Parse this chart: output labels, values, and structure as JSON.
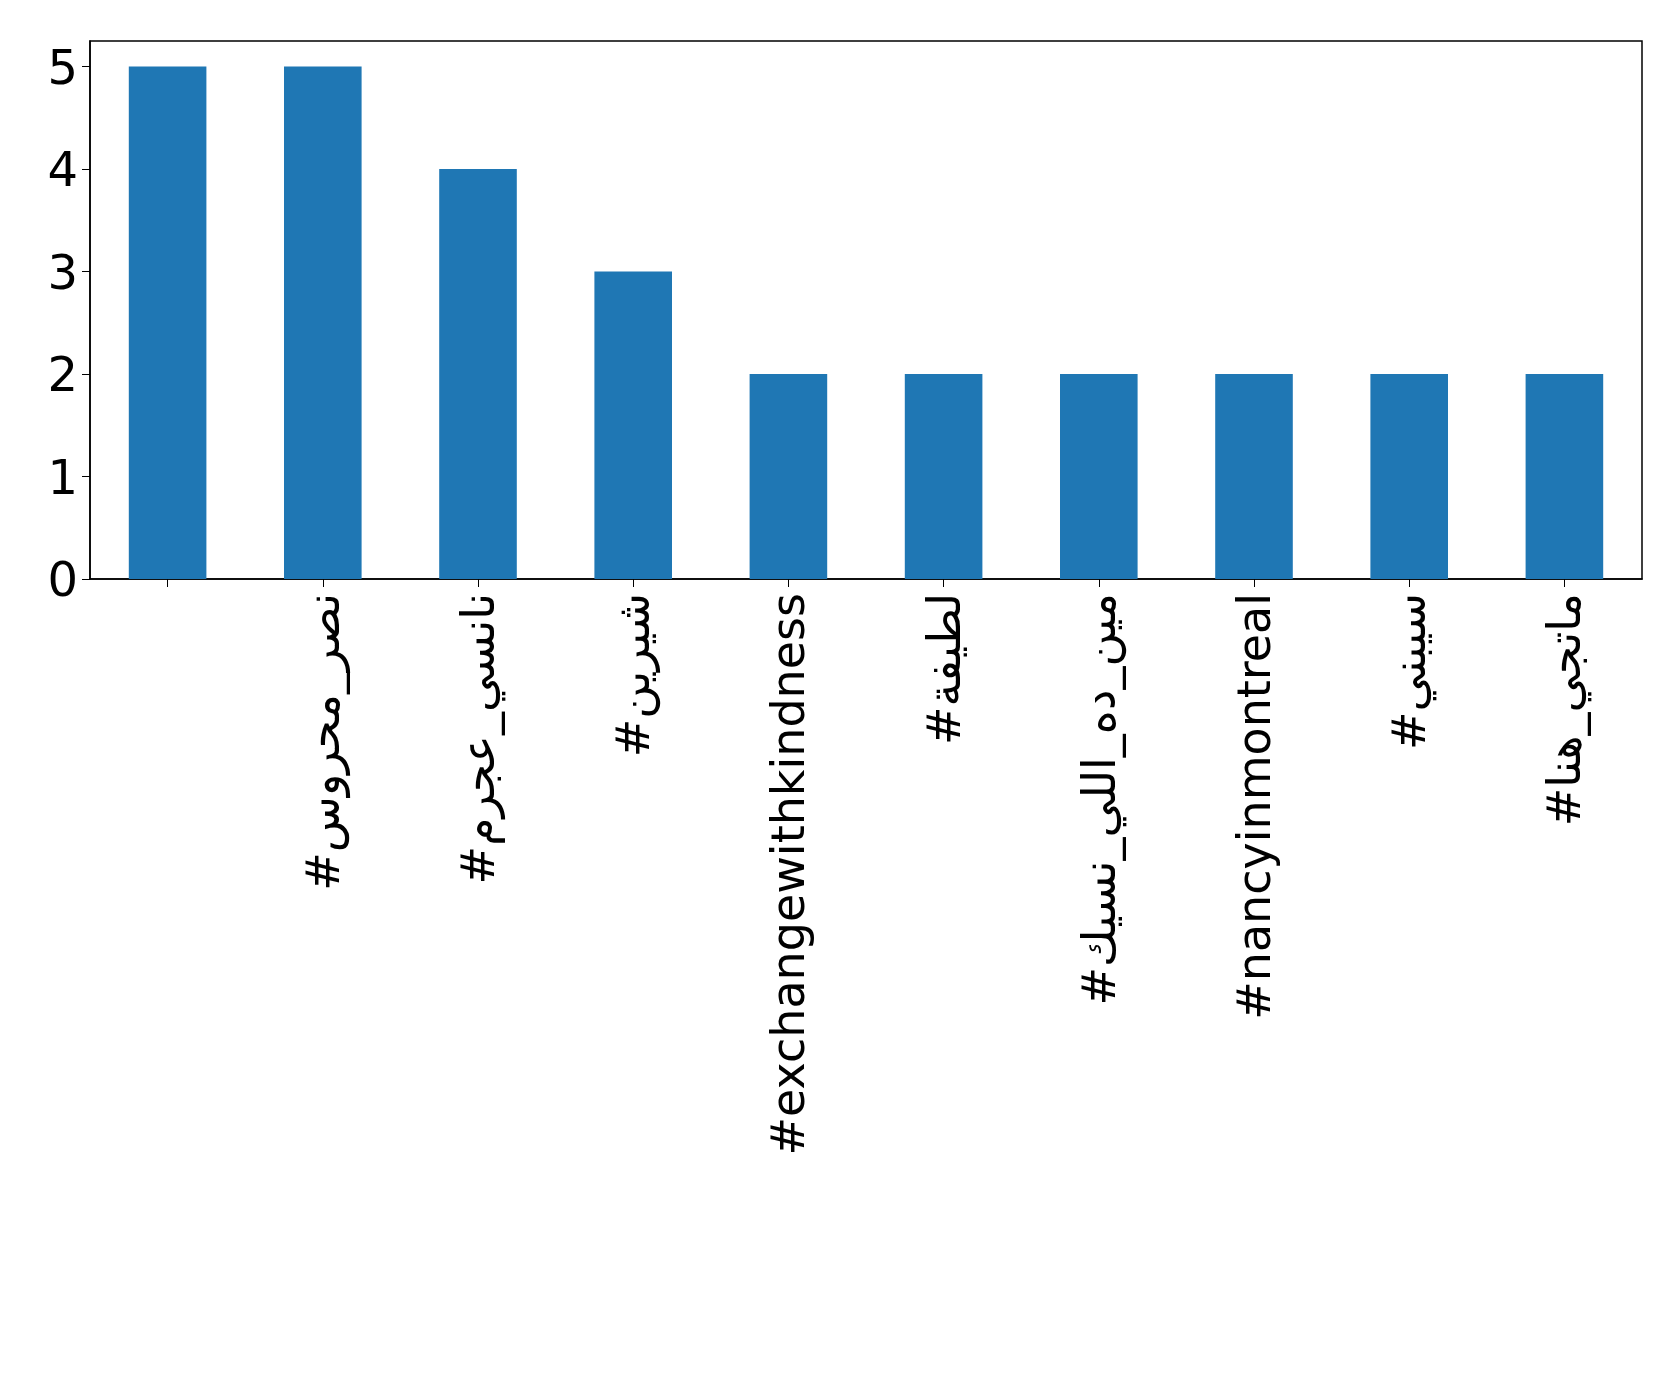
{
  "chart_data": {
    "type": "bar",
    "categories": [
      null,
      "#نصر_محروس",
      "#نانسي_عجرم",
      "#شيرين",
      "#exchangewithkindness",
      "#لطيفة",
      "#مين_ده_اللي_نسيك",
      "#nancyinmontreal",
      "#سيبني",
      "#ماتجي_هنا"
    ],
    "values": [
      5,
      5,
      4,
      3,
      2,
      2,
      2,
      2,
      2,
      2
    ],
    "color": "#1f77b4",
    "ylim": [
      0,
      5.25
    ],
    "yticks": [
      0,
      1,
      2,
      3,
      4,
      5
    ],
    "grid": false
  }
}
